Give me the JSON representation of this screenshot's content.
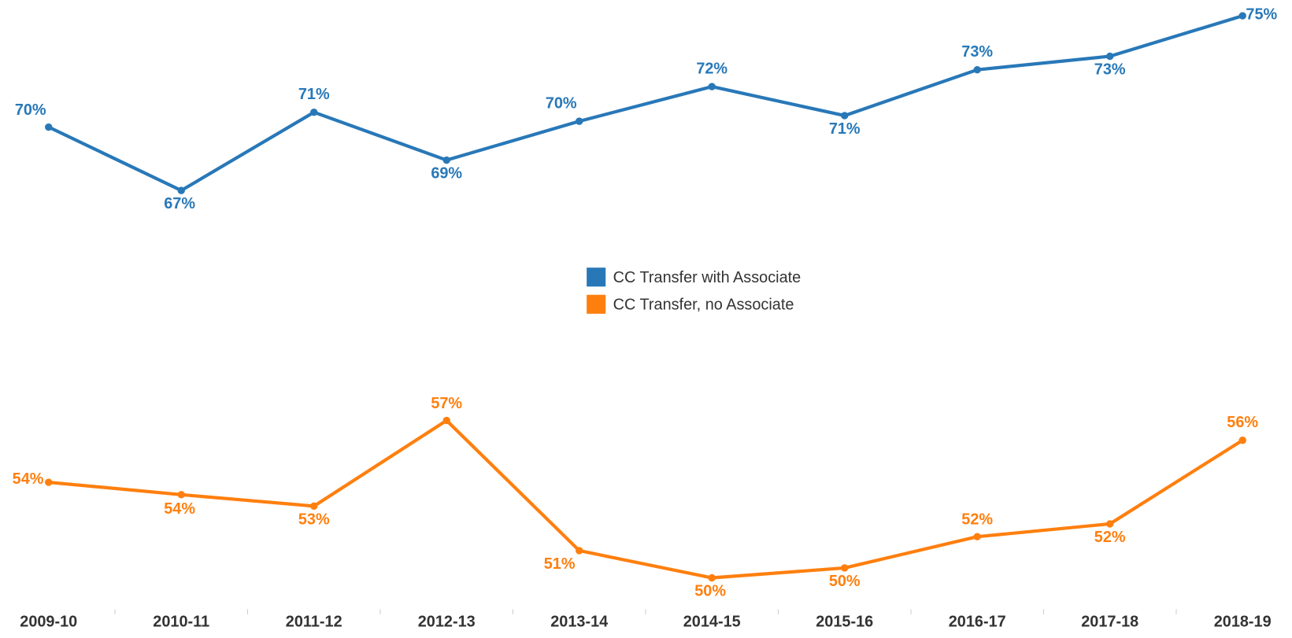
{
  "chart_data": {
    "type": "line",
    "categories": [
      "2009-10",
      "2010-11",
      "2011-12",
      "2012-13",
      "2013-14",
      "2014-15",
      "2015-16",
      "2016-17",
      "2017-18",
      "2018-19"
    ],
    "series": [
      {
        "name": "CC Transfer with Associate",
        "color": "#2878b8",
        "values": [
          70.05,
          67.23,
          70.71,
          68.58,
          70.31,
          71.85,
          70.56,
          72.6,
          73.2,
          75.0
        ],
        "value_labels": [
          "70%",
          "67%",
          "71%",
          "69%",
          "70%",
          "72%",
          "71%",
          "73%",
          "73%",
          "75%"
        ]
      },
      {
        "name": "CC Transfer, no Associate",
        "color": "#ff7f0e",
        "values": [
          54.25,
          53.7,
          53.19,
          57.0,
          51.21,
          50.0,
          50.44,
          51.83,
          52.4,
          56.12
        ],
        "value_labels": [
          "54%",
          "54%",
          "53%",
          "57%",
          "51%",
          "50%",
          "50%",
          "52%",
          "52%",
          "56%"
        ]
      }
    ],
    "ylim": [
      48.6,
      75.7
    ]
  }
}
